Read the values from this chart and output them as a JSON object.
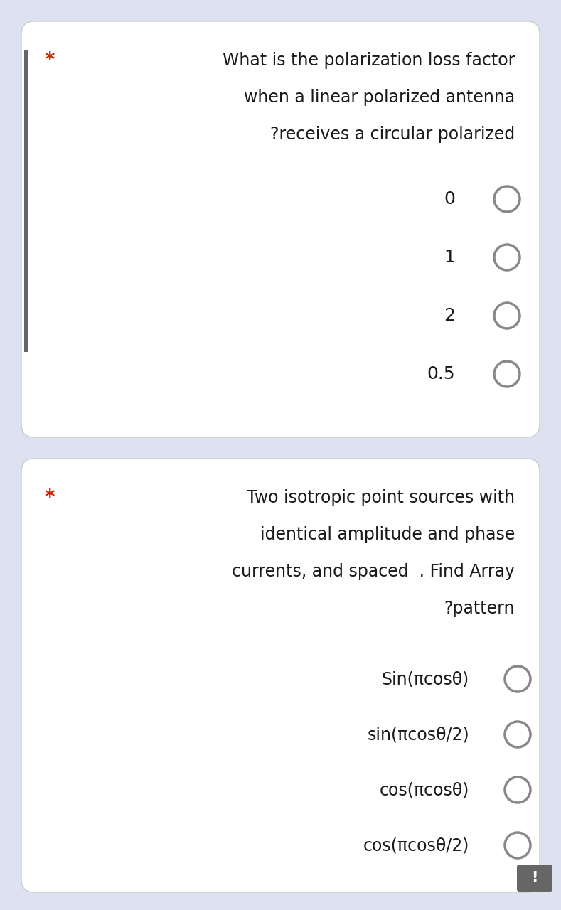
{
  "bg_color": "#dde1f0",
  "card_color": "#ffffff",
  "text_color": "#1a1a1a",
  "star_color": "#cc2200",
  "circle_edge_color": "#888888",
  "circle_face_color": "none",
  "left_bar_color": "#666666",
  "q1": {
    "question_lines": [
      "What is the polarization loss factor",
      "when a linear polarized antenna",
      "?receives a circular polarized"
    ],
    "options": [
      "0",
      "1",
      "2",
      "0.5"
    ]
  },
  "q2": {
    "question_lines": [
      "Two isotropic point sources with",
      "identical amplitude and phase",
      "currents, and spaced  . Find Array",
      "?pattern"
    ],
    "options": [
      "Sin(πcosθ)",
      "sin(πcosθ/2)",
      "cos(πcosθ)",
      "cos(πcosθ/2)"
    ]
  },
  "figsize": [
    7.89,
    12.8
  ],
  "dpi": 100
}
